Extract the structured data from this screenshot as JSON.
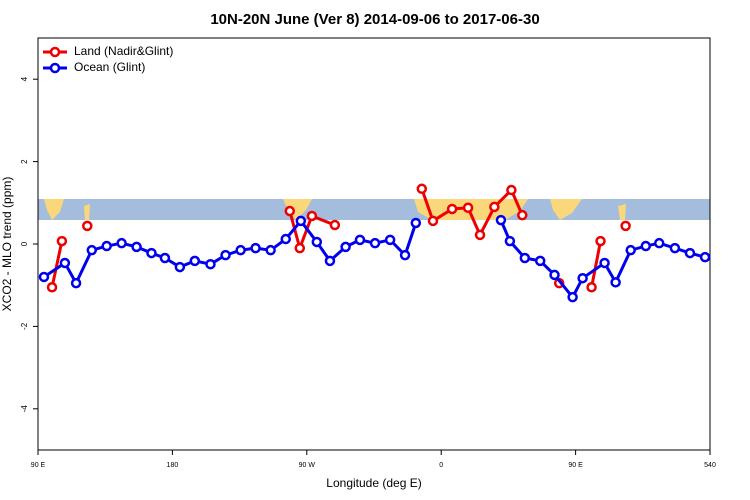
{
  "chart_data": {
    "type": "line",
    "title": "10N-20N June (Ver 8)   2014-09-06 to 2017-06-30",
    "xlabel": "Longitude (deg E)",
    "ylabel": "XCO2 - MLO trend (ppm)",
    "xlim": [
      90,
      540
    ],
    "ylim": [
      -5,
      5
    ],
    "xticks": [
      {
        "value": 90,
        "label": "90 E"
      },
      180,
      {
        "value": 270,
        "label": "90 W"
      },
      {
        "value": 360,
        "label": "0"
      },
      {
        "value": 450,
        "label": "90 E"
      },
      540
    ],
    "yticks": [
      -4,
      -2,
      0,
      2,
      4
    ],
    "legend": "topleft",
    "series": [
      {
        "name": "Land (Nadir&Glint)",
        "color": "#ee0000",
        "x": [
          99.4,
          106,
          115,
          123,
          200,
          258.6,
          265.3,
          273.4,
          288.8,
          320,
          347,
          354.5,
          367.3,
          378,
          386,
          395.6,
          407,
          414.3,
          425,
          439,
          450,
          460.7,
          466.7,
          475,
          483.5
        ],
        "values": [
          -1.05,
          0.07,
          null,
          0.44,
          null,
          0.8,
          -0.1,
          0.68,
          0.46,
          null,
          1.34,
          0.56,
          0.85,
          0.88,
          0.22,
          0.9,
          1.31,
          0.7,
          null,
          -0.95,
          null,
          -1.05,
          0.07,
          null,
          0.44
        ]
      },
      {
        "name": "Ocean (Glint)",
        "color": "#0000ee",
        "x": [
          94,
          108,
          115.5,
          126,
          136,
          146,
          156,
          166,
          175,
          185,
          195,
          205.5,
          215.6,
          225.7,
          235.7,
          245.8,
          255.9,
          266,
          276.7,
          285.5,
          296,
          305.6,
          315.7,
          325.8,
          335.8,
          343,
          372,
          400,
          406,
          416,
          426.3,
          435.9,
          448,
          454.7,
          469.4,
          476.8,
          486.9,
          497,
          506,
          516.5,
          526.6,
          536.7
        ],
        "values": [
          -0.8,
          -0.46,
          -0.95,
          -0.15,
          -0.05,
          0.02,
          -0.07,
          -0.22,
          -0.34,
          -0.56,
          -0.41,
          -0.49,
          -0.27,
          -0.15,
          -0.1,
          -0.15,
          0.12,
          0.56,
          0.05,
          -0.41,
          -0.07,
          0.1,
          0.02,
          0.1,
          -0.27,
          0.51,
          null,
          0.58,
          0.07,
          -0.34,
          -0.41,
          -0.75,
          -1.29,
          -0.83,
          -0.46,
          -0.93,
          -0.15,
          -0.05,
          0.02,
          -0.1,
          -0.22,
          -0.32
        ]
      }
    ]
  }
}
